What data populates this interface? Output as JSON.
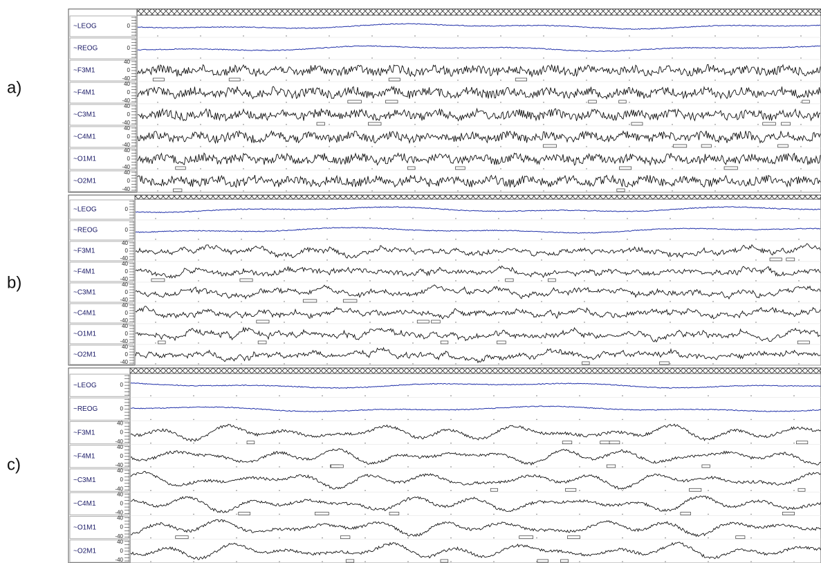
{
  "panels": [
    {
      "label": "a)",
      "channels": [
        {
          "name": "~LEOG",
          "scale": [
            "0"
          ]
        },
        {
          "name": "~REOG",
          "scale": [
            "0"
          ]
        },
        {
          "name": "~F3M1",
          "scale": [
            "40",
            "0",
            "-40"
          ]
        },
        {
          "name": "~F4M1",
          "scale": [
            "40",
            "0",
            "-40"
          ]
        },
        {
          "name": "~C3M1",
          "scale": [
            "40",
            "0",
            "-40"
          ]
        },
        {
          "name": "~C4M1",
          "scale": [
            "40",
            "0",
            "-40"
          ]
        },
        {
          "name": "~O1M1",
          "scale": [
            "40",
            "0",
            "-40"
          ]
        },
        {
          "name": "~O2M1",
          "scale": [
            "40",
            "0",
            "-40"
          ]
        }
      ]
    },
    {
      "label": "b)",
      "channels": [
        {
          "name": "~LEOG",
          "scale": [
            "0"
          ]
        },
        {
          "name": "~REOG",
          "scale": [
            "0"
          ]
        },
        {
          "name": "~F3M1",
          "scale": [
            "40",
            "0",
            "-40"
          ]
        },
        {
          "name": "~F4M1",
          "scale": [
            "40",
            "0",
            "-40"
          ]
        },
        {
          "name": "~C3M1",
          "scale": [
            "40",
            "0",
            "-40"
          ]
        },
        {
          "name": "~C4M1",
          "scale": [
            "40",
            "0",
            "-40"
          ]
        },
        {
          "name": "~O1M1",
          "scale": [
            "40",
            "0",
            "-40"
          ]
        },
        {
          "name": "~O2M1",
          "scale": [
            "40",
            "0",
            "-40"
          ]
        }
      ]
    },
    {
      "label": "c)",
      "channels": [
        {
          "name": "~LEOG",
          "scale": [
            "0"
          ]
        },
        {
          "name": "~REOG",
          "scale": [
            "0"
          ]
        },
        {
          "name": "~F3M1",
          "scale": [
            "40",
            "0",
            "-40"
          ]
        },
        {
          "name": "~F4M1",
          "scale": [
            "40",
            "0",
            "-40"
          ]
        },
        {
          "name": "~C3M1",
          "scale": [
            "40",
            "0",
            "-40"
          ]
        },
        {
          "name": "~C4M1",
          "scale": [
            "40",
            "0",
            "-40"
          ]
        },
        {
          "name": "~O1M1",
          "scale": [
            "40",
            "0",
            "-40"
          ]
        },
        {
          "name": "~O2M1",
          "scale": [
            "40",
            "0",
            "-40"
          ]
        }
      ]
    }
  ]
}
